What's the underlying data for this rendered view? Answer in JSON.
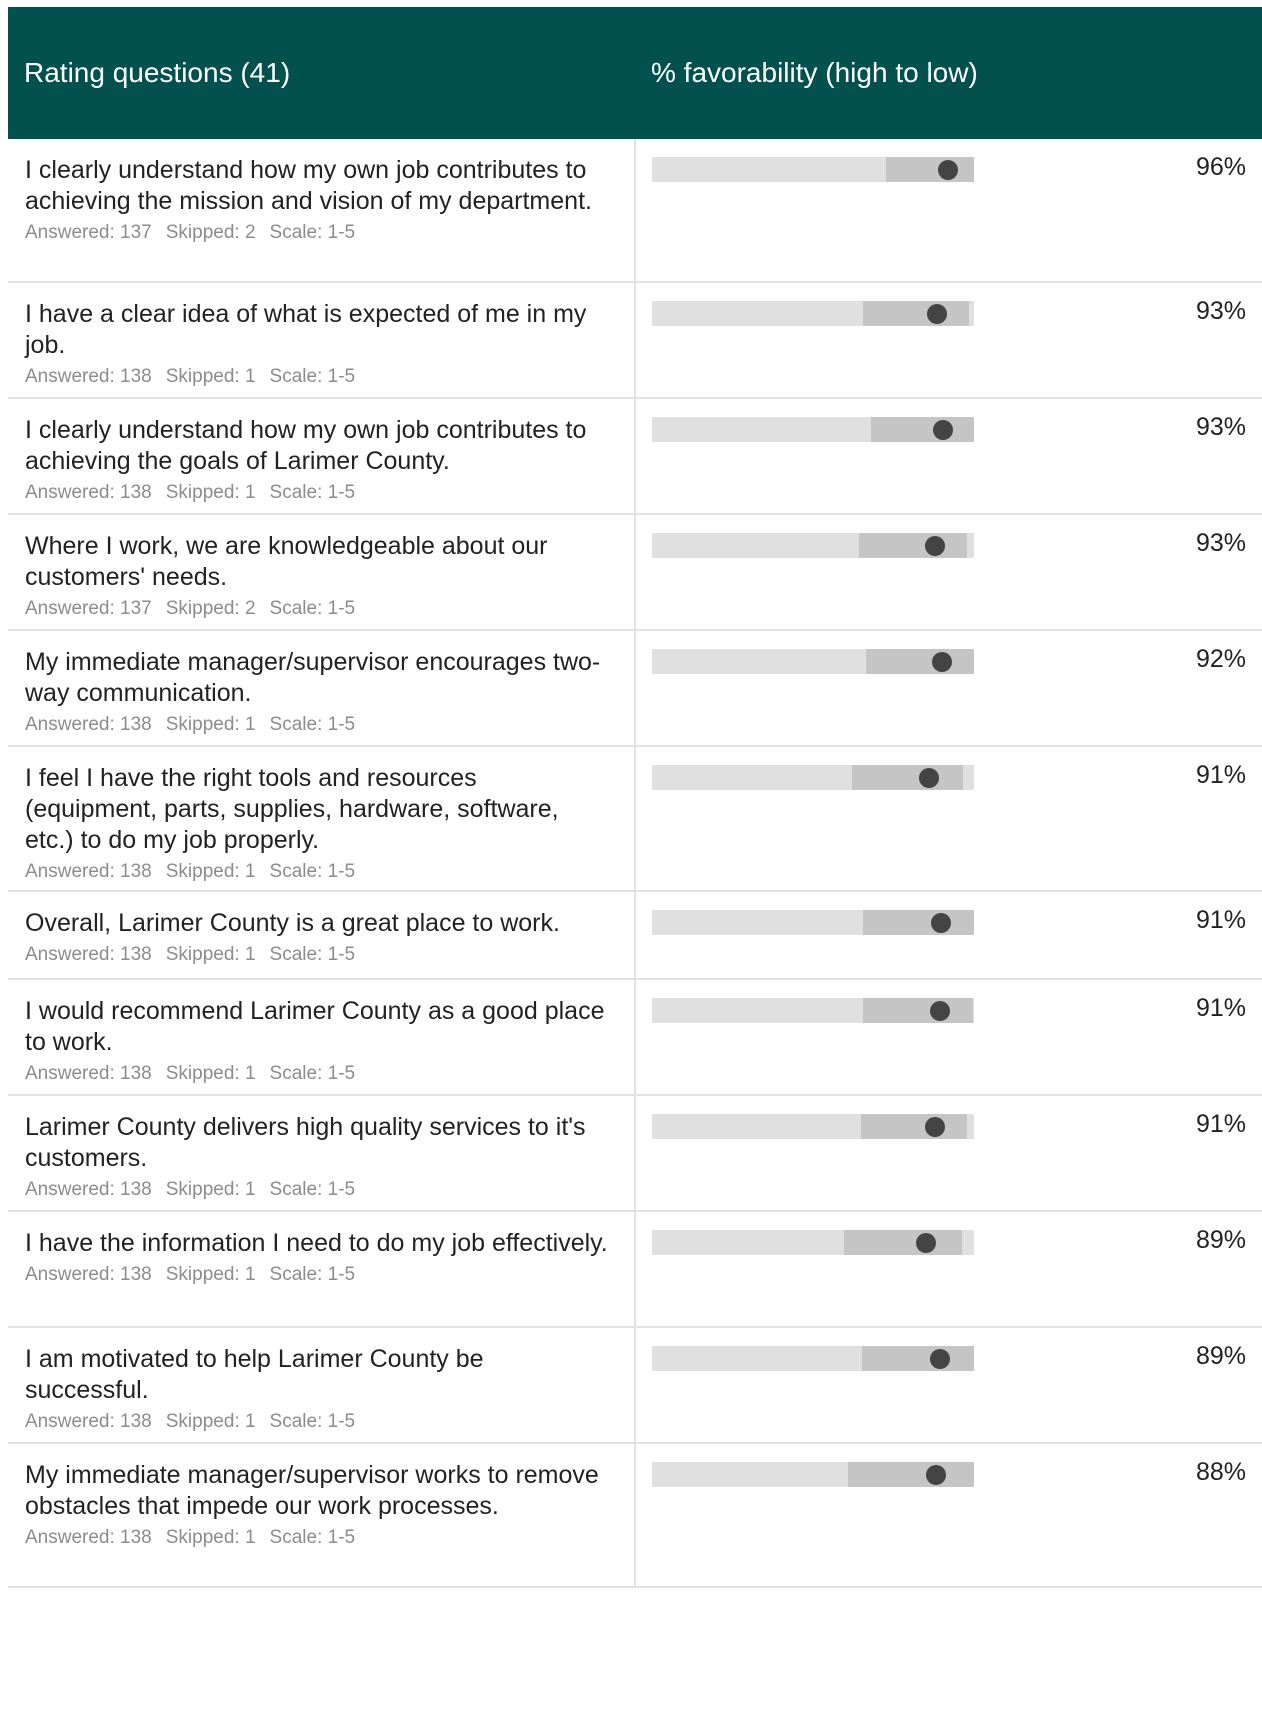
{
  "header": {
    "questions_label": "Rating questions (41)",
    "favorability_label": "% favorability (high to low)"
  },
  "colors": {
    "header_bg": "#03514f",
    "bar_track": "#e0e0e0",
    "bar_range": "#c5c5c5",
    "bar_dot": "#444444"
  },
  "questions": [
    {
      "text": "I clearly understand how my own job contributes to achieving the mission and vision of my department.",
      "answered": "Answered: 137",
      "skipped": "Skipped: 2",
      "scale": "Scale: 1-5",
      "favorability": "96%",
      "value": 0.96,
      "range": [
        0.727,
        1.0
      ]
    },
    {
      "text": "I have a clear idea of what is expected of me in my job.",
      "answered": "Answered: 138",
      "skipped": "Skipped: 1",
      "scale": "Scale: 1-5",
      "favorability": "93%",
      "value": 0.93,
      "range": [
        0.654,
        0.983
      ]
    },
    {
      "text": "I clearly understand how my own job contributes to achieving the goals of Larimer County.",
      "answered": "Answered: 138",
      "skipped": "Skipped: 1",
      "scale": "Scale: 1-5",
      "favorability": "93%",
      "value": 0.93,
      "range": [
        0.68,
        1.0
      ]
    },
    {
      "text": "Where I work, we are knowledgeable about our customers' needs.",
      "answered": "Answered: 137",
      "skipped": "Skipped: 2",
      "scale": "Scale: 1-5",
      "favorability": "93%",
      "value": 0.93,
      "range": [
        0.642,
        0.979
      ]
    },
    {
      "text": "My immediate manager/supervisor encourages two-way communication.",
      "answered": "Answered: 138",
      "skipped": "Skipped: 1",
      "scale": "Scale: 1-5",
      "favorability": "92%",
      "value": 0.92,
      "range": [
        0.664,
        1.0
      ]
    },
    {
      "text": "I feel I have the right tools and resources (equipment, parts, supplies, hardware, software, etc.) to do my job properly.",
      "answered": "Answered: 138",
      "skipped": "Skipped: 1",
      "scale": "Scale: 1-5",
      "favorability": "91%",
      "value": 0.91,
      "range": [
        0.62,
        0.965
      ]
    },
    {
      "text": "Overall, Larimer County is a great place to work.",
      "answered": "Answered: 138",
      "skipped": "Skipped: 1",
      "scale": "Scale: 1-5",
      "favorability": "91%",
      "value": 0.91,
      "range": [
        0.654,
        1.0
      ]
    },
    {
      "text": "I would recommend Larimer County as a good place to work.",
      "answered": "Answered: 138",
      "skipped": "Skipped: 1",
      "scale": "Scale: 1-5",
      "favorability": "91%",
      "value": 0.91,
      "range": [
        0.654,
        0.996
      ]
    },
    {
      "text": "Larimer County delivers high quality services to it's customers.",
      "answered": "Answered: 138",
      "skipped": "Skipped: 1",
      "scale": "Scale: 1-5",
      "favorability": "91%",
      "value": 0.91,
      "range": [
        0.648,
        0.979
      ]
    },
    {
      "text": "I have the information I need to do my job effectively.",
      "answered": "Answered: 138",
      "skipped": "Skipped: 1",
      "scale": "Scale: 1-5",
      "favorability": "89%",
      "value": 0.89,
      "range": [
        0.596,
        0.962
      ]
    },
    {
      "text": "I am motivated to help Larimer County be successful.",
      "answered": "Answered: 138",
      "skipped": "Skipped: 1",
      "scale": "Scale: 1-5",
      "favorability": "89%",
      "value": 0.89,
      "range": [
        0.651,
        1.0
      ]
    },
    {
      "text": "My immediate manager/supervisor works to remove obstacles that impede our work processes.",
      "answered": "Answered: 138",
      "skipped": "Skipped: 1",
      "scale": "Scale: 1-5",
      "favorability": "88%",
      "value": 0.88,
      "range": [
        0.609,
        1.0
      ]
    }
  ]
}
